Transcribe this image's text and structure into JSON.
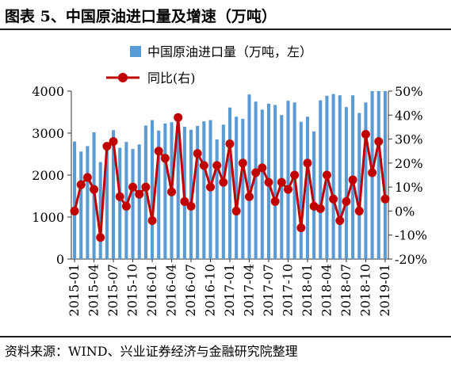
{
  "figure_title": "图表 5、中国原油进口量及增速（万吨）",
  "source_note": "资料来源：WIND、兴业证券经济与金融研究院整理",
  "colors": {
    "bar": "#5b9bd5",
    "line": "#c00000",
    "axis": "#333333"
  },
  "chart_data": {
    "type": "bar+line",
    "x_tick_labels": [
      "2015-01",
      "2015-04",
      "2015-07",
      "2015-10",
      "2016-01",
      "2016-04",
      "2016-07",
      "2016-10",
      "2017-01",
      "2017-04",
      "2017-07",
      "2017-10",
      "2018-01",
      "2018-04",
      "2018-07",
      "2018-10",
      "2019-01"
    ],
    "categories": [
      "2015-01",
      "2015-02",
      "2015-03",
      "2015-04",
      "2015-05",
      "2015-06",
      "2015-07",
      "2015-08",
      "2015-09",
      "2015-10",
      "2015-11",
      "2015-12",
      "2016-01",
      "2016-02",
      "2016-03",
      "2016-04",
      "2016-05",
      "2016-06",
      "2016-07",
      "2016-08",
      "2016-09",
      "2016-10",
      "2016-11",
      "2016-12",
      "2017-01",
      "2017-02",
      "2017-03",
      "2017-04",
      "2017-05",
      "2017-06",
      "2017-07",
      "2017-08",
      "2017-09",
      "2017-10",
      "2017-11",
      "2017-12",
      "2018-01",
      "2018-02",
      "2018-03",
      "2018-04",
      "2018-05",
      "2018-06",
      "2018-07",
      "2018-08",
      "2018-09",
      "2018-10",
      "2018-11",
      "2018-12",
      "2019-01"
    ],
    "series": [
      {
        "name": "中国原油进口量（万吨，左）",
        "type": "bar",
        "axis": "left",
        "values": [
          2800,
          2560,
          2690,
          3020,
          2310,
          2700,
          3070,
          2650,
          2790,
          2620,
          2730,
          3180,
          3310,
          3060,
          3230,
          3260,
          3270,
          3150,
          3080,
          3170,
          3280,
          3310,
          2850,
          3200,
          3610,
          3390,
          3340,
          3920,
          3750,
          3560,
          3700,
          3670,
          3430,
          3770,
          3730,
          3270,
          3390,
          3040,
          3780,
          3890,
          3930,
          3900,
          3620,
          3900,
          3480,
          3730,
          4000,
          4000,
          4000
        ]
      },
      {
        "name": "同比(右)",
        "type": "line",
        "axis": "right",
        "values": [
          0,
          11,
          14,
          9,
          -11,
          27,
          29,
          6,
          2,
          10,
          7,
          10,
          -4,
          25,
          22,
          8,
          39,
          4,
          2,
          24,
          19,
          10,
          19,
          12,
          28,
          0,
          20,
          6,
          16,
          18,
          12,
          4,
          12,
          9,
          15,
          -7,
          20,
          2,
          1,
          15,
          5,
          -4,
          4,
          13,
          0,
          32,
          16,
          29,
          5
        ]
      }
    ],
    "y_left": {
      "min": 0,
      "max": 4000,
      "ticks": [
        0,
        1000,
        2000,
        3000,
        4000
      ]
    },
    "y_right": {
      "min": -20,
      "max": 50,
      "ticks": [
        -20,
        -10,
        0,
        10,
        20,
        30,
        40,
        50
      ],
      "tick_suffix": "%"
    },
    "legend_position": "top-center",
    "grid": false
  }
}
